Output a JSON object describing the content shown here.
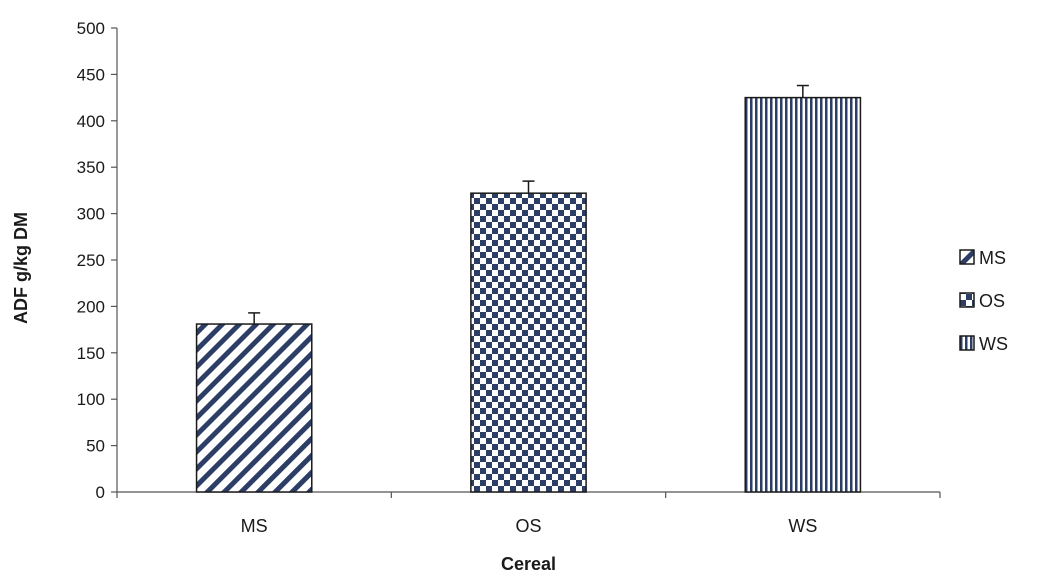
{
  "chart_data": {
    "type": "bar",
    "title": "",
    "xlabel": "Cereal",
    "ylabel": "ADF g/kg DM",
    "categories": [
      "MS",
      "OS",
      "WS"
    ],
    "values": [
      181,
      322,
      425
    ],
    "error": [
      12,
      13,
      13
    ],
    "ylim": [
      0,
      500
    ],
    "yticks": [
      0,
      50,
      100,
      150,
      200,
      250,
      300,
      350,
      400,
      450,
      500
    ],
    "grid": false,
    "legend": {
      "placement": "right",
      "entries": [
        "MS",
        "OS",
        "WS"
      ]
    },
    "patterns": [
      "diagonal-stripes",
      "checkerboard",
      "vertical-stripes"
    ],
    "colors": {
      "bar_fill": "#2c3e66",
      "bar_stroke": "#1a1a1a",
      "axis": "#555555"
    }
  }
}
